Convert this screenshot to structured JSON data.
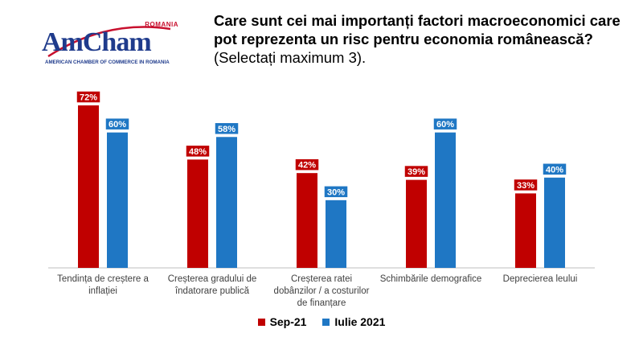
{
  "logo": {
    "country": "ROMANIA",
    "name": "AmCham",
    "tagline": "AMERICAN CHAMBER OF COMMERCE IN ROMANIA"
  },
  "title": {
    "bold": "Care sunt cei mai importanți factori macroeconomici care pot reprezenta un risc pentru economia românească?",
    "normal": " (Selectați  maximum 3)."
  },
  "colors": {
    "sep21": "#c00000",
    "iulie2021": "#1f77c4",
    "brand_red": "#c8102e",
    "brand_blue": "#1f3b8c"
  },
  "chart_data": {
    "type": "bar",
    "categories": [
      [
        "Tendința de creștere a",
        "inflației"
      ],
      [
        "Creșterea gradului de",
        "îndatorare publică"
      ],
      [
        "Creșterea ratei",
        "dobânzilor / a costurilor",
        "de finanțare"
      ],
      [
        "Schimbările demografice"
      ],
      [
        "Deprecierea leului"
      ]
    ],
    "series": [
      {
        "name": "Sep-21",
        "values": [
          72,
          48,
          42,
          39,
          33
        ],
        "labels": [
          "72%",
          "48%",
          "42%",
          "39%",
          "33%"
        ],
        "color": "#c00000"
      },
      {
        "name": "Iulie 2021",
        "values": [
          60,
          58,
          30,
          60,
          40
        ],
        "labels": [
          "60%",
          "58%",
          "30%",
          "60%",
          "40%"
        ],
        "color": "#1f77c4"
      }
    ],
    "ylim": [
      0,
      80
    ],
    "grid": false,
    "legend": "bottom"
  }
}
